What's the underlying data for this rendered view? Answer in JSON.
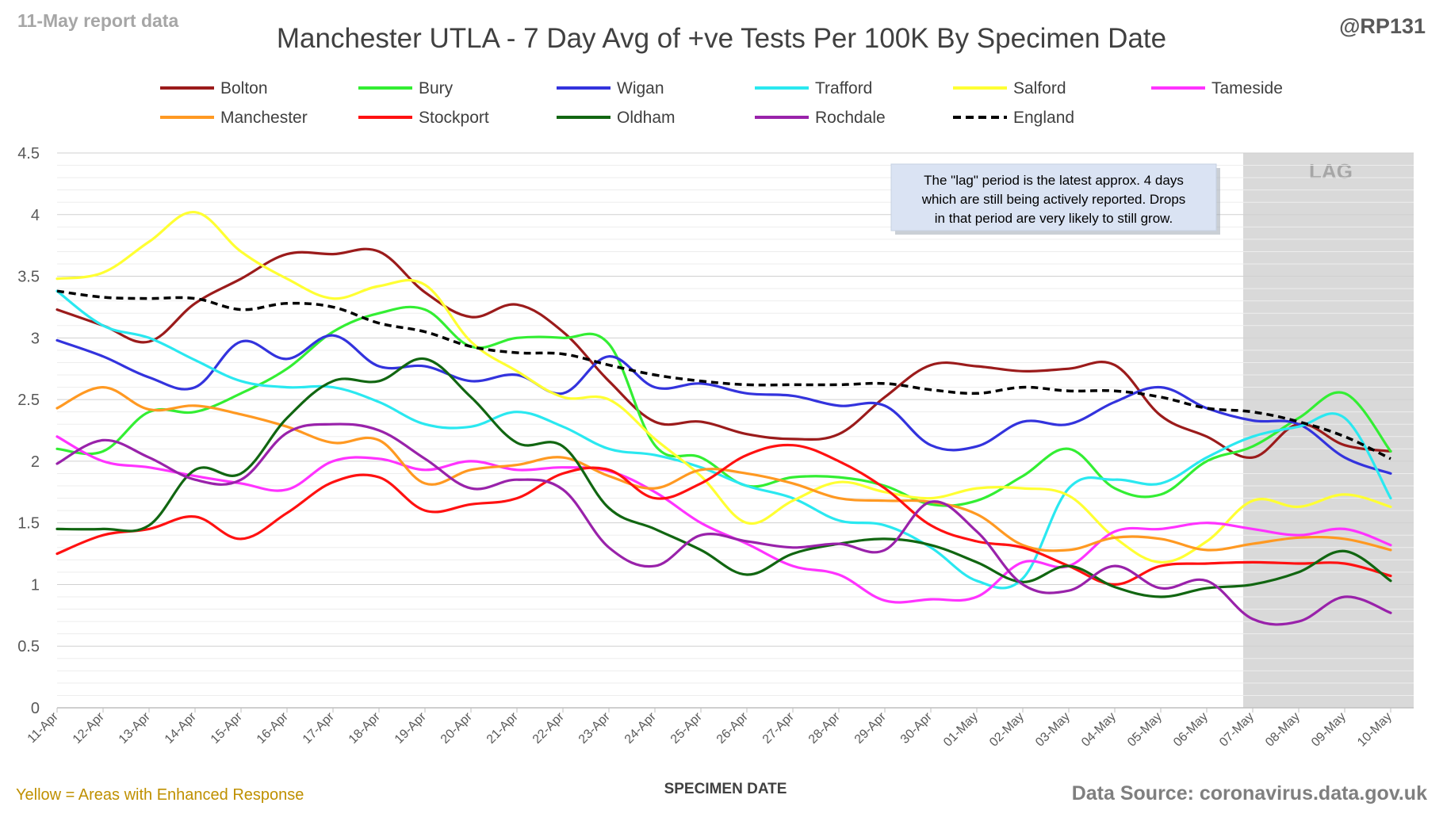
{
  "report_label": "11-May report data",
  "handle": "@RP131",
  "footer_note": "Yellow = Areas with Enhanced Response",
  "source": "Data Source: coronavirus.data.gov.uk",
  "lag_note": [
    "The \"lag\" period is the latest approx. 4 days",
    "which are still being actively reported.  Drops",
    "in that period are very likely to still grow."
  ],
  "lag_label": "LAG",
  "colors": {
    "lag_band": "#d9d9d9",
    "gridline": "#d9d9d9",
    "axis": "#bfbfbf",
    "tick_text": "#595959",
    "note_bg": "#dae3f3",
    "report_label": "#a6a6a6",
    "footer_note": "#bf9000",
    "source": "#7f7f7f"
  },
  "chart_data": {
    "type": "line",
    "title": "Manchester UTLA - 7 Day Avg of +ve Tests Per 100K By Specimen Date",
    "xlabel": "SPECIMEN DATE",
    "ylabel": "",
    "ylim": [
      0,
      4.5
    ],
    "yticks": [
      "0",
      "0.5",
      "1",
      "1.5",
      "2",
      "2.5",
      "3",
      "3.5",
      "4",
      "4.5"
    ],
    "grid": true,
    "legend_position": "top",
    "lag_range": [
      "07-May",
      "10-May"
    ],
    "categories": [
      "11-Apr",
      "12-Apr",
      "13-Apr",
      "14-Apr",
      "15-Apr",
      "16-Apr",
      "17-Apr",
      "18-Apr",
      "19-Apr",
      "20-Apr",
      "21-Apr",
      "22-Apr",
      "23-Apr",
      "24-Apr",
      "25-Apr",
      "26-Apr",
      "27-Apr",
      "28-Apr",
      "29-Apr",
      "30-Apr",
      "01-May",
      "02-May",
      "03-May",
      "04-May",
      "05-May",
      "06-May",
      "07-May",
      "08-May",
      "09-May",
      "10-May"
    ],
    "series": [
      {
        "name": "Bolton",
        "color": "#9b1b1b",
        "dashed": false,
        "values": [
          3.23,
          3.1,
          2.97,
          3.28,
          3.48,
          3.68,
          3.68,
          3.7,
          3.37,
          3.17,
          3.27,
          3.05,
          2.65,
          2.32,
          2.32,
          2.22,
          2.18,
          2.22,
          2.52,
          2.78,
          2.77,
          2.73,
          2.75,
          2.78,
          2.37,
          2.2,
          2.03,
          2.3,
          2.13,
          2.08
        ]
      },
      {
        "name": "Bury",
        "color": "#33ee33",
        "dashed": false,
        "values": [
          2.1,
          2.08,
          2.4,
          2.4,
          2.55,
          2.75,
          3.05,
          3.2,
          3.23,
          2.93,
          3.0,
          3.0,
          2.95,
          2.13,
          2.03,
          1.8,
          1.87,
          1.87,
          1.8,
          1.65,
          1.68,
          1.88,
          2.1,
          1.78,
          1.73,
          2.0,
          2.12,
          2.35,
          2.55,
          2.08
        ]
      },
      {
        "name": "Wigan",
        "color": "#3333dd",
        "dashed": false,
        "values": [
          2.98,
          2.85,
          2.68,
          2.6,
          2.97,
          2.83,
          3.02,
          2.77,
          2.77,
          2.65,
          2.7,
          2.55,
          2.85,
          2.6,
          2.63,
          2.55,
          2.53,
          2.45,
          2.45,
          2.13,
          2.12,
          2.32,
          2.3,
          2.48,
          2.6,
          2.43,
          2.33,
          2.3,
          2.03,
          1.9
        ]
      },
      {
        "name": "Trafford",
        "color": "#2ae8f0",
        "dashed": false,
        "values": [
          3.38,
          3.1,
          3.0,
          2.82,
          2.65,
          2.6,
          2.6,
          2.48,
          2.3,
          2.28,
          2.4,
          2.28,
          2.1,
          2.05,
          1.95,
          1.8,
          1.7,
          1.52,
          1.48,
          1.3,
          1.03,
          1.05,
          1.78,
          1.85,
          1.82,
          2.03,
          2.2,
          2.28,
          2.35,
          1.7
        ]
      },
      {
        "name": "Salford",
        "color": "#ffff33",
        "dashed": false,
        "values": [
          3.48,
          3.53,
          3.78,
          4.02,
          3.7,
          3.48,
          3.32,
          3.42,
          3.43,
          2.97,
          2.73,
          2.52,
          2.5,
          2.18,
          1.88,
          1.5,
          1.68,
          1.83,
          1.75,
          1.7,
          1.78,
          1.78,
          1.72,
          1.38,
          1.18,
          1.35,
          1.68,
          1.63,
          1.73,
          1.63
        ]
      },
      {
        "name": "Tameside",
        "color": "#ff33ff",
        "dashed": false,
        "values": [
          2.2,
          2.0,
          1.95,
          1.88,
          1.82,
          1.77,
          2.0,
          2.02,
          1.93,
          2.0,
          1.93,
          1.95,
          1.92,
          1.75,
          1.5,
          1.33,
          1.15,
          1.08,
          0.87,
          0.88,
          0.9,
          1.18,
          1.15,
          1.43,
          1.45,
          1.5,
          1.45,
          1.4,
          1.45,
          1.32
        ]
      },
      {
        "name": "Manchester",
        "color": "#ff9922",
        "dashed": false,
        "values": [
          2.43,
          2.6,
          2.42,
          2.45,
          2.38,
          2.28,
          2.15,
          2.17,
          1.82,
          1.93,
          1.97,
          2.03,
          1.88,
          1.78,
          1.93,
          1.9,
          1.82,
          1.7,
          1.68,
          1.67,
          1.57,
          1.32,
          1.28,
          1.38,
          1.37,
          1.28,
          1.33,
          1.38,
          1.37,
          1.28
        ]
      },
      {
        "name": "Stockport",
        "color": "#ff1111",
        "dashed": false,
        "values": [
          1.25,
          1.4,
          1.45,
          1.55,
          1.37,
          1.58,
          1.83,
          1.87,
          1.6,
          1.65,
          1.7,
          1.9,
          1.93,
          1.7,
          1.82,
          2.05,
          2.13,
          2.0,
          1.78,
          1.48,
          1.35,
          1.3,
          1.15,
          1.0,
          1.15,
          1.17,
          1.18,
          1.17,
          1.17,
          1.07
        ]
      },
      {
        "name": "Oldham",
        "color": "#116611",
        "dashed": false,
        "values": [
          1.45,
          1.45,
          1.48,
          1.93,
          1.9,
          2.35,
          2.65,
          2.65,
          2.83,
          2.52,
          2.15,
          2.12,
          1.62,
          1.45,
          1.28,
          1.08,
          1.25,
          1.33,
          1.37,
          1.32,
          1.18,
          1.02,
          1.15,
          0.98,
          0.9,
          0.97,
          1.0,
          1.1,
          1.27,
          1.03
        ]
      },
      {
        "name": "Rochdale",
        "color": "#9922aa",
        "dashed": false,
        "values": [
          1.98,
          2.17,
          2.03,
          1.85,
          1.85,
          2.23,
          2.3,
          2.25,
          2.02,
          1.78,
          1.85,
          1.77,
          1.3,
          1.15,
          1.4,
          1.35,
          1.3,
          1.33,
          1.28,
          1.67,
          1.43,
          1.0,
          0.95,
          1.15,
          0.97,
          1.03,
          0.72,
          0.7,
          0.9,
          0.77
        ]
      },
      {
        "name": "England",
        "color": "#000000",
        "dashed": true,
        "values": [
          3.38,
          3.33,
          3.32,
          3.32,
          3.23,
          3.28,
          3.25,
          3.12,
          3.05,
          2.93,
          2.88,
          2.87,
          2.78,
          2.7,
          2.65,
          2.62,
          2.62,
          2.62,
          2.63,
          2.58,
          2.55,
          2.6,
          2.57,
          2.57,
          2.52,
          2.43,
          2.4,
          2.32,
          2.2,
          2.02
        ]
      }
    ]
  }
}
